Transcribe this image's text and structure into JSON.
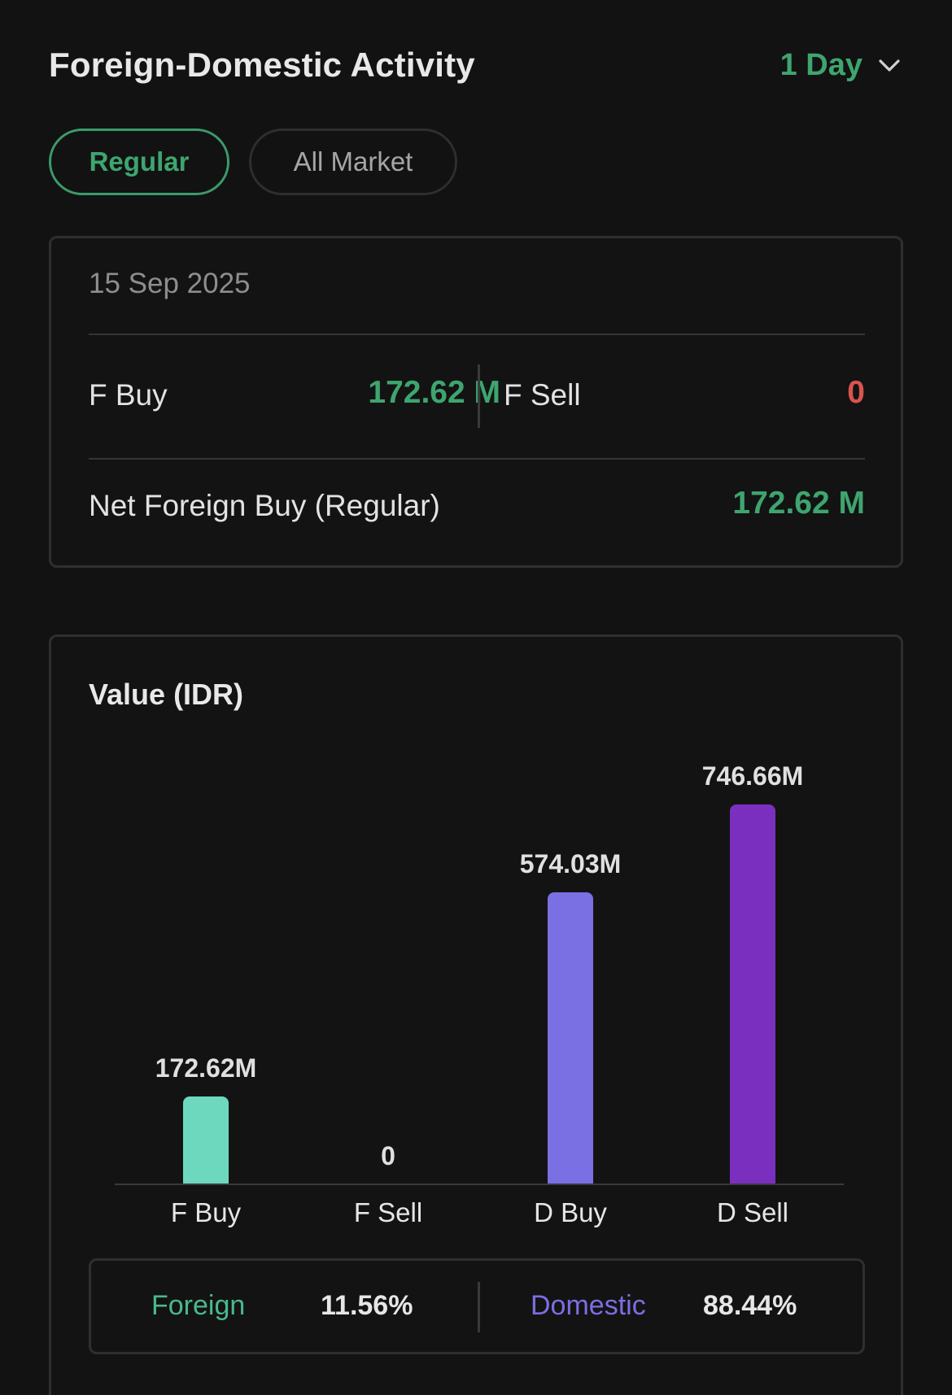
{
  "header": {
    "title": "Foreign-Domestic Activity",
    "period": "1 Day"
  },
  "tabs": [
    {
      "label": "Regular",
      "active": true
    },
    {
      "label": "All Market",
      "active": false
    }
  ],
  "summary": {
    "date": "15 Sep 2025",
    "f_buy_label": "F Buy",
    "f_buy_value": "172.62 M",
    "f_sell_label": "F Sell",
    "f_sell_value": "0",
    "net_label": "Net Foreign Buy (Regular)",
    "net_value": "172.62 M"
  },
  "chart_data": {
    "type": "bar",
    "title": "Value (IDR)",
    "categories": [
      "F Buy",
      "F Sell",
      "D Buy",
      "D Sell"
    ],
    "values": [
      172.62,
      0,
      574.03,
      746.66
    ],
    "value_labels": [
      "172.62M",
      "0",
      "574.03M",
      "746.66M"
    ],
    "colors": [
      "#6dd8be",
      "#7a6fe3",
      "#7a6fe3",
      "#7b2fbf"
    ],
    "xlabel": "",
    "ylabel": "",
    "grid": false,
    "legend": "none"
  },
  "share": {
    "foreign_label": "Foreign",
    "foreign_value": "11.56%",
    "domestic_label": "Domestic",
    "domestic_value": "88.44%"
  },
  "colors": {
    "background": "#121212",
    "accent_green": "#3ea56f",
    "negative_red": "#d9534f",
    "foreign_teal": "#6dd8be",
    "domestic_violet": "#7a6fe3",
    "domestic_purple": "#7b2fbf"
  },
  "icons": {
    "period_dropdown": "chevron-down-icon"
  }
}
